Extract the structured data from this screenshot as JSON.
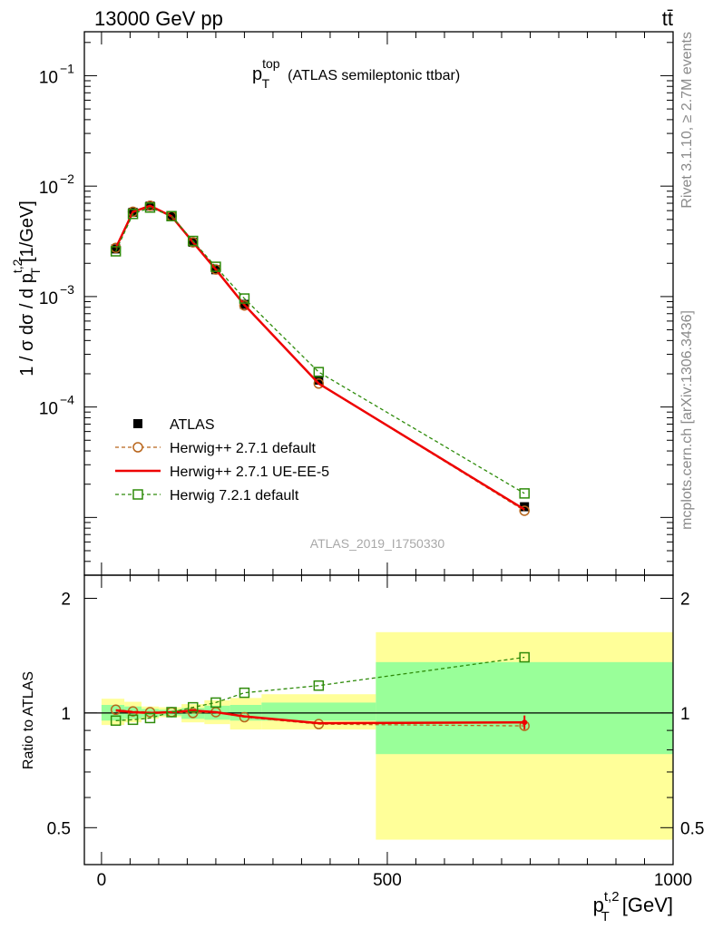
{
  "header": {
    "left": "13000 GeV pp",
    "right": "tt̄"
  },
  "side_labels": {
    "rivet": "Rivet 3.1.10, ≥ 2.7M events",
    "mcplots": "mcplots.cern.ch [arXiv:1306.3436]"
  },
  "watermark": "ATLAS_2019_I1750330",
  "chart_data": [
    {
      "type": "line",
      "panel": "main",
      "title": {
        "base": "p",
        "sup": "top",
        "sub": "T",
        "rest": "(ATLAS semileptonic ttbar)"
      },
      "ylabel": {
        "prefix": "1 / σ dσ / d p",
        "sup": "t,2",
        "sub": "T",
        "unit": "[1/GeV]"
      },
      "yscale": "log",
      "ylim": [
        3e-06,
        0.25
      ],
      "xlim": [
        -30,
        1000
      ],
      "y_tick_labels": [
        {
          "value": 0.1,
          "base": "10",
          "exp": "−1"
        },
        {
          "value": 0.01,
          "base": "10",
          "exp": "−2"
        },
        {
          "value": 0.001,
          "base": "10",
          "exp": "−3"
        },
        {
          "value": 0.0001,
          "base": "10",
          "exp": "−4"
        }
      ],
      "legend_position": "bottom-left",
      "series": [
        {
          "name": "ATLAS",
          "color": "#000000",
          "marker": "filled-square",
          "x": [
            25,
            55,
            85,
            122.5,
            160,
            200,
            250,
            380,
            740
          ],
          "y": [
            0.0027,
            0.0058,
            0.0066,
            0.0053,
            0.0031,
            0.00175,
            0.00085,
            0.000175,
            1.25e-05
          ]
        },
        {
          "name": "Herwig++ 2.7.1 default",
          "color": "#b8651b",
          "marker": "open-circle",
          "line": "dashed",
          "x": [
            25,
            55,
            85,
            122.5,
            160,
            200,
            250,
            380,
            740
          ],
          "y": [
            0.00276,
            0.00586,
            0.00665,
            0.00535,
            0.0031,
            0.00176,
            0.00083,
            0.000163,
            1.15e-05
          ]
        },
        {
          "name": "Herwig++ 2.7.1 UE-EE-5",
          "color": "#ee0000",
          "marker": "none",
          "line": "solid",
          "x": [
            25,
            55,
            85,
            122.5,
            160,
            200,
            250,
            380,
            740
          ],
          "y": [
            0.00275,
            0.00585,
            0.00664,
            0.00534,
            0.00311,
            0.00176,
            0.00084,
            0.000163,
            1.18e-05
          ]
        },
        {
          "name": "Herwig 7.2.1 default",
          "color": "#2e8b0a",
          "marker": "open-square",
          "line": "dashed",
          "x": [
            25,
            55,
            85,
            122.5,
            160,
            200,
            250,
            380,
            740
          ],
          "y": [
            0.00257,
            0.0056,
            0.0064,
            0.00535,
            0.00319,
            0.00186,
            0.00096,
            0.000207,
            1.65e-05
          ]
        }
      ]
    },
    {
      "type": "line",
      "panel": "ratio",
      "ylabel": "Ratio to ATLAS",
      "xlabel": {
        "base": "p",
        "sup": "t,2",
        "sub": "T",
        "unit": "[GeV]"
      },
      "xlim": [
        -30,
        1000
      ],
      "ylim": [
        0.4,
        2.3
      ],
      "yscale": "log",
      "x_ticks": [
        0,
        500,
        1000
      ],
      "y_ticks": [
        0.5,
        1,
        2
      ],
      "bands": {
        "bin_edges": [
          0,
          40,
          70,
          100,
          140,
          180,
          225,
          280,
          480,
          1000
        ],
        "green_lo": [
          0.955,
          0.965,
          0.975,
          0.985,
          0.965,
          0.96,
          0.955,
          0.955,
          0.78
        ],
        "green_hi": [
          1.05,
          1.04,
          1.025,
          1.02,
          1.03,
          1.045,
          1.05,
          1.065,
          1.36
        ],
        "yellow_lo": [
          0.93,
          0.945,
          0.965,
          0.975,
          0.945,
          0.935,
          0.905,
          0.905,
          0.465
        ],
        "yellow_hi": [
          1.09,
          1.07,
          1.04,
          1.035,
          1.055,
          1.08,
          1.095,
          1.12,
          1.63
        ],
        "green_color": "#99ff99",
        "yellow_color": "#ffff99"
      },
      "series": [
        {
          "name": "Herwig++ 2.7.1 default",
          "color": "#b8651b",
          "x": [
            25,
            55,
            85,
            122.5,
            160,
            200,
            250,
            380,
            740
          ],
          "y": [
            1.02,
            1.01,
            1.005,
            1.005,
            1.0,
            1.005,
            0.975,
            0.935,
            0.925
          ]
        },
        {
          "name": "Herwig++ 2.7.1 UE-EE-5",
          "color": "#ee0000",
          "x": [
            25,
            55,
            85,
            122.5,
            160,
            200,
            250,
            380,
            740
          ],
          "y": [
            1.015,
            1.005,
            1.0,
            1.005,
            1.015,
            1.005,
            0.98,
            0.94,
            0.945
          ],
          "last_err": [
            0.905,
            0.985
          ]
        },
        {
          "name": "Herwig 7.2.1 default",
          "color": "#2e8b0a",
          "x": [
            25,
            55,
            85,
            122.5,
            160,
            200,
            250,
            380,
            740
          ],
          "y": [
            0.955,
            0.96,
            0.97,
            1.005,
            1.035,
            1.065,
            1.13,
            1.18,
            1.4
          ]
        }
      ]
    }
  ]
}
